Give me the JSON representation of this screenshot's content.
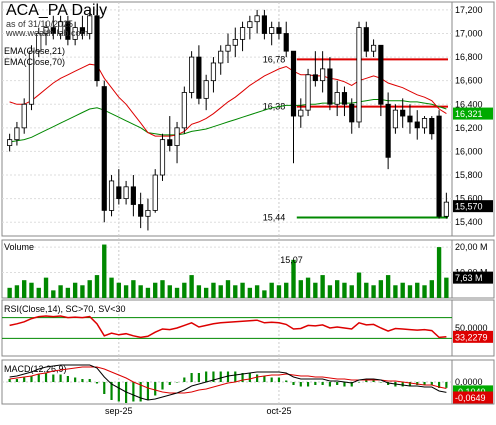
{
  "header": {
    "title": "ACA_PA Daily",
    "asof": "as of 31/10/2025",
    "site": "www.wealth-lab.com"
  },
  "colors": {
    "up_candle": "#ffffff",
    "down_candle": "#000000",
    "ema21": "#dd0000",
    "ema70": "#008800",
    "hline_red": "#dd0000",
    "hline_green": "#008800",
    "volume_bar": "#008800",
    "rsi_line": "#dd0000",
    "rsi_band": "#008800",
    "macd_line": "#000000",
    "signal_line": "#dd0000",
    "macd_hist": "#008800",
    "price_tag_green_bg": "#00aa00",
    "price_tag_black_bg": "#000000"
  },
  "chart_data": [
    {
      "type": "candlestick",
      "panel": "price",
      "legend": [
        "EMA(Close,21)",
        "EMA(Close,70)"
      ],
      "y_ticks": [
        "17,200",
        "17,000",
        "16,800",
        "16,600",
        "16,400",
        "16,200",
        "16,000",
        "15,800",
        "15,600",
        "15,400"
      ],
      "ylim": [
        15300,
        17250
      ],
      "x_labels": [
        {
          "index": 15,
          "label": "sep-25"
        },
        {
          "index": 37,
          "label": "oct-25"
        }
      ],
      "last_close_tag": "15,570",
      "ema21_tag": "16,321",
      "hlines": [
        {
          "value": 16780,
          "label": "16,78",
          "color": "red",
          "start_index": 40
        },
        {
          "value": 16380,
          "label": "16,38",
          "color": "red",
          "start_index": 40
        },
        {
          "value": 15440,
          "label": "15,44",
          "color": "green",
          "start_index": 40
        }
      ],
      "candles": [
        {
          "o": 16050,
          "h": 16150,
          "l": 16000,
          "c": 16100
        },
        {
          "o": 16100,
          "h": 16250,
          "l": 16050,
          "c": 16200
        },
        {
          "o": 16200,
          "h": 16450,
          "l": 16150,
          "c": 16400
        },
        {
          "o": 16400,
          "h": 16900,
          "l": 16350,
          "c": 16850
        },
        {
          "o": 16850,
          "h": 17050,
          "l": 16800,
          "c": 17000
        },
        {
          "o": 17000,
          "h": 17100,
          "l": 16900,
          "c": 17050
        },
        {
          "o": 17050,
          "h": 17150,
          "l": 16950,
          "c": 17000
        },
        {
          "o": 17000,
          "h": 17150,
          "l": 16950,
          "c": 17100
        },
        {
          "o": 17100,
          "h": 17150,
          "l": 16900,
          "c": 16950
        },
        {
          "o": 16950,
          "h": 17100,
          "l": 16900,
          "c": 17050
        },
        {
          "o": 17050,
          "h": 17150,
          "l": 16950,
          "c": 17000
        },
        {
          "o": 17000,
          "h": 17200,
          "l": 16950,
          "c": 17150
        },
        {
          "o": 17150,
          "h": 17200,
          "l": 16550,
          "c": 16600
        },
        {
          "o": 16550,
          "h": 16600,
          "l": 15400,
          "c": 15500
        },
        {
          "o": 15500,
          "h": 15800,
          "l": 15450,
          "c": 15750
        },
        {
          "o": 15700,
          "h": 15850,
          "l": 15550,
          "c": 15600
        },
        {
          "o": 15600,
          "h": 15750,
          "l": 15550,
          "c": 15700
        },
        {
          "o": 15700,
          "h": 15800,
          "l": 15450,
          "c": 15550
        },
        {
          "o": 15550,
          "h": 15650,
          "l": 15350,
          "c": 15450
        },
        {
          "o": 15450,
          "h": 15600,
          "l": 15330,
          "c": 15500
        },
        {
          "o": 15500,
          "h": 15850,
          "l": 15480,
          "c": 15800
        },
        {
          "o": 15800,
          "h": 16150,
          "l": 15750,
          "c": 16100
        },
        {
          "o": 16100,
          "h": 16300,
          "l": 16000,
          "c": 16050
        },
        {
          "o": 16050,
          "h": 16250,
          "l": 15900,
          "c": 16200
        },
        {
          "o": 16200,
          "h": 16550,
          "l": 16150,
          "c": 16500
        },
        {
          "o": 16500,
          "h": 16850,
          "l": 16450,
          "c": 16800
        },
        {
          "o": 16800,
          "h": 16900,
          "l": 16400,
          "c": 16450
        },
        {
          "o": 16450,
          "h": 16650,
          "l": 16350,
          "c": 16600
        },
        {
          "o": 16600,
          "h": 16800,
          "l": 16500,
          "c": 16750
        },
        {
          "o": 16750,
          "h": 16900,
          "l": 16650,
          "c": 16850
        },
        {
          "o": 16850,
          "h": 17000,
          "l": 16750,
          "c": 16900
        },
        {
          "o": 16900,
          "h": 17050,
          "l": 16800,
          "c": 16950
        },
        {
          "o": 16950,
          "h": 17100,
          "l": 16850,
          "c": 17050
        },
        {
          "o": 17050,
          "h": 17150,
          "l": 16950,
          "c": 17100
        },
        {
          "o": 17100,
          "h": 17200,
          "l": 17000,
          "c": 17150
        },
        {
          "o": 17150,
          "h": 17200,
          "l": 16950,
          "c": 17000
        },
        {
          "o": 17000,
          "h": 17100,
          "l": 16900,
          "c": 17050
        },
        {
          "o": 17050,
          "h": 17100,
          "l": 16950,
          "c": 17000
        },
        {
          "o": 17000,
          "h": 17100,
          "l": 16800,
          "c": 16850
        },
        {
          "o": 16850,
          "h": 16850,
          "l": 15900,
          "c": 16300
        },
        {
          "o": 16300,
          "h": 16450,
          "l": 16200,
          "c": 16350
        },
        {
          "o": 16350,
          "h": 16700,
          "l": 16300,
          "c": 16650
        },
        {
          "o": 16650,
          "h": 16850,
          "l": 16550,
          "c": 16600
        },
        {
          "o": 16600,
          "h": 16850,
          "l": 16500,
          "c": 16700
        },
        {
          "o": 16700,
          "h": 16800,
          "l": 16350,
          "c": 16400
        },
        {
          "o": 16400,
          "h": 16600,
          "l": 16300,
          "c": 16500
        },
        {
          "o": 16500,
          "h": 16550,
          "l": 16300,
          "c": 16400
        },
        {
          "o": 16400,
          "h": 16450,
          "l": 16150,
          "c": 16250
        },
        {
          "o": 16250,
          "h": 17100,
          "l": 16200,
          "c": 17050
        },
        {
          "o": 17050,
          "h": 17100,
          "l": 16800,
          "c": 16850
        },
        {
          "o": 16850,
          "h": 16950,
          "l": 16800,
          "c": 16900
        },
        {
          "o": 16900,
          "h": 16900,
          "l": 16300,
          "c": 16400
        },
        {
          "o": 16400,
          "h": 16500,
          "l": 15850,
          "c": 15950
        },
        {
          "o": 16200,
          "h": 16400,
          "l": 16150,
          "c": 16350
        },
        {
          "o": 16350,
          "h": 16450,
          "l": 16200,
          "c": 16300
        },
        {
          "o": 16300,
          "h": 16400,
          "l": 16150,
          "c": 16250
        },
        {
          "o": 16250,
          "h": 16350,
          "l": 16100,
          "c": 16200
        },
        {
          "o": 16200,
          "h": 16300,
          "l": 16150,
          "c": 16280
        },
        {
          "o": 16280,
          "h": 16300,
          "l": 16100,
          "c": 16150
        },
        {
          "o": 16300,
          "h": 16350,
          "l": 15430,
          "c": 15450
        },
        {
          "o": 15450,
          "h": 15650,
          "l": 15430,
          "c": 15570
        }
      ],
      "ema21": [
        16420,
        16400,
        16400,
        16430,
        16480,
        16530,
        16580,
        16620,
        16650,
        16680,
        16710,
        16740,
        16730,
        16620,
        16540,
        16460,
        16400,
        16320,
        16240,
        16160,
        16130,
        16130,
        16130,
        16140,
        16170,
        16230,
        16250,
        16280,
        16320,
        16370,
        16420,
        16460,
        16510,
        16560,
        16600,
        16640,
        16670,
        16700,
        16720,
        16680,
        16650,
        16650,
        16640,
        16640,
        16620,
        16610,
        16590,
        16560,
        16600,
        16620,
        16640,
        16620,
        16580,
        16560,
        16540,
        16510,
        16480,
        16460,
        16430,
        16360,
        16321
      ],
      "ema70": [
        16080,
        16090,
        16100,
        16120,
        16150,
        16180,
        16210,
        16240,
        16270,
        16300,
        16330,
        16360,
        16370,
        16350,
        16320,
        16290,
        16260,
        16230,
        16200,
        16160,
        16150,
        16140,
        16140,
        16140,
        16150,
        16170,
        16180,
        16190,
        16210,
        16230,
        16250,
        16270,
        16290,
        16310,
        16330,
        16350,
        16370,
        16380,
        16390,
        16390,
        16390,
        16400,
        16400,
        16410,
        16410,
        16410,
        16410,
        16410,
        16420,
        16430,
        16440,
        16440,
        16430,
        16430,
        16430,
        16420,
        16420,
        16410,
        16400,
        16380,
        16360
      ]
    },
    {
      "type": "bar",
      "panel": "volume",
      "label": "Volume",
      "y_ticks": [
        "20,00 M",
        "10,00 M"
      ],
      "ylim": [
        0,
        22000000
      ],
      "last_tag": "7,63 M",
      "annotation": "15,07",
      "values": [
        4,
        5,
        7,
        6,
        4,
        8,
        3,
        5,
        4,
        6,
        5,
        7,
        9,
        21,
        8,
        6,
        5,
        7,
        5,
        4,
        6,
        7,
        5,
        4,
        6,
        9,
        5,
        4,
        6,
        5,
        7,
        5,
        6,
        4,
        5,
        3,
        6,
        5,
        6,
        15,
        7,
        8,
        6,
        9,
        5,
        7,
        6,
        5,
        10,
        6,
        5,
        7,
        9,
        5,
        6,
        5,
        6,
        5,
        7,
        20,
        8
      ]
    },
    {
      "type": "line",
      "panel": "rsi",
      "label": "RSI(Close,14), SC>70, SV<30",
      "y_ticks": [
        "50,0000"
      ],
      "ylim": [
        0,
        100
      ],
      "bands": [
        70,
        30
      ],
      "last_tag": "33,2279",
      "values": [
        55,
        58,
        62,
        68,
        72,
        73,
        72,
        73,
        70,
        71,
        70,
        72,
        58,
        35,
        40,
        37,
        39,
        35,
        32,
        34,
        42,
        48,
        47,
        50,
        55,
        60,
        52,
        55,
        58,
        60,
        61,
        62,
        63,
        64,
        65,
        60,
        61,
        60,
        57,
        48,
        49,
        55,
        54,
        56,
        50,
        52,
        50,
        48,
        60,
        56,
        57,
        50,
        44,
        49,
        48,
        47,
        46,
        47,
        45,
        32,
        33
      ]
    },
    {
      "type": "line",
      "panel": "macd",
      "label": "MACD(12,26,9)",
      "y_ticks": [
        "0,0000"
      ],
      "ylim": [
        -0.2,
        0.2
      ],
      "last_tags": [
        "-0,1040",
        "-0,0649"
      ],
      "macd": [
        0.05,
        0.06,
        0.08,
        0.1,
        0.13,
        0.15,
        0.16,
        0.17,
        0.17,
        0.17,
        0.17,
        0.17,
        0.14,
        0.05,
        -0.02,
        -0.06,
        -0.1,
        -0.13,
        -0.16,
        -0.18,
        -0.17,
        -0.15,
        -0.13,
        -0.11,
        -0.08,
        -0.04,
        -0.02,
        0.0,
        0.02,
        0.04,
        0.06,
        0.07,
        0.08,
        0.09,
        0.1,
        0.1,
        0.1,
        0.1,
        0.09,
        0.05,
        0.03,
        0.03,
        0.03,
        0.03,
        0.01,
        0.01,
        0.0,
        -0.01,
        0.02,
        0.03,
        0.03,
        0.02,
        -0.01,
        -0.02,
        -0.03,
        -0.04,
        -0.04,
        -0.05,
        -0.05,
        -0.09,
        -0.104
      ],
      "signal": [
        0.03,
        0.04,
        0.05,
        0.06,
        0.08,
        0.09,
        0.11,
        0.12,
        0.13,
        0.14,
        0.15,
        0.15,
        0.15,
        0.13,
        0.1,
        0.07,
        0.04,
        0.0,
        -0.03,
        -0.06,
        -0.08,
        -0.1,
        -0.11,
        -0.11,
        -0.11,
        -0.1,
        -0.08,
        -0.07,
        -0.05,
        -0.03,
        -0.01,
        0.0,
        0.02,
        0.03,
        0.05,
        0.06,
        0.07,
        0.07,
        0.08,
        0.07,
        0.06,
        0.06,
        0.05,
        0.05,
        0.04,
        0.03,
        0.03,
        0.02,
        0.02,
        0.02,
        0.02,
        0.02,
        0.01,
        0.01,
        0.0,
        -0.01,
        -0.02,
        -0.03,
        -0.03,
        -0.05,
        -0.0649
      ]
    }
  ]
}
